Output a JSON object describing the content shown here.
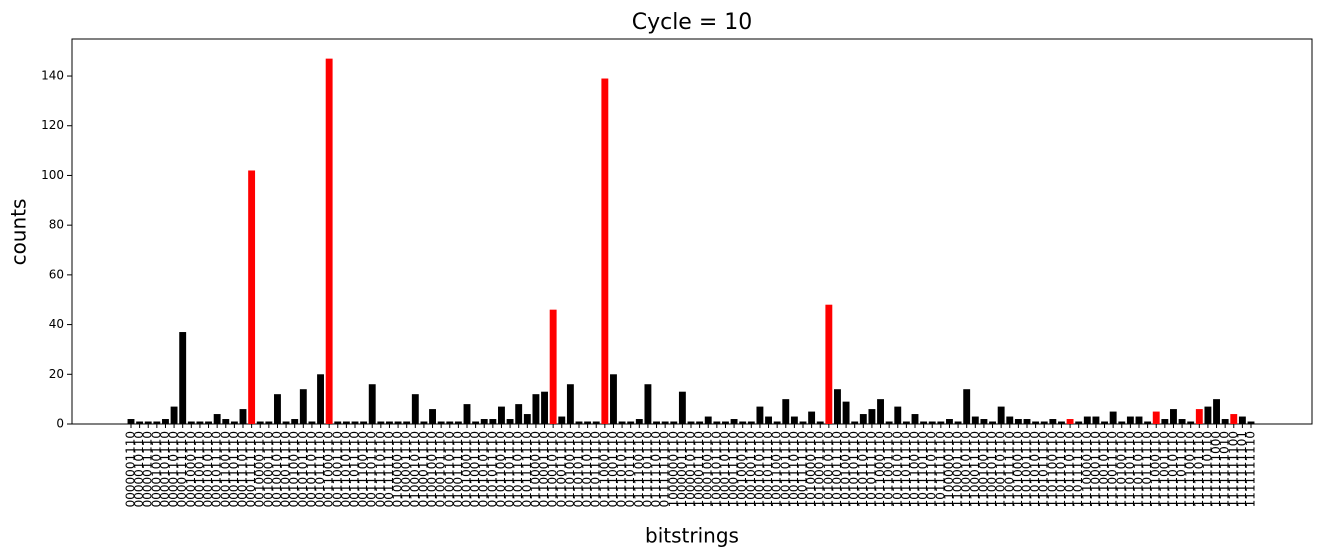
{
  "chart_data": {
    "type": "bar",
    "title": "Cycle  = 10",
    "x_label": "bitstrings",
    "y_label": "counts",
    "categories": [
      "0000001110",
      "0000010110",
      "0000011110",
      "0000100110",
      "0000101110",
      "0000110110",
      "0000111110",
      "0001000110",
      "0001001110",
      "0001010110",
      "0001011110",
      "0001100110",
      "0001101110",
      "0001110110",
      "0001111110",
      "0010000110",
      "0010001110",
      "0010010110",
      "0010011110",
      "0010100110",
      "0010101110",
      "0010110110",
      "0010111110",
      "0011000110",
      "0011001110",
      "0011010110",
      "0011011110",
      "0011100110",
      "0011101110",
      "0011110110",
      "0011111110",
      "0100000110",
      "0100001110",
      "0100010110",
      "0100011110",
      "0100100110",
      "0100101110",
      "0100110110",
      "0100111110",
      "0101000110",
      "0101001110",
      "0101010110",
      "0101011110",
      "0101100110",
      "0101101110",
      "0101110110",
      "0101111110",
      "0110000110",
      "0110001110",
      "0110010110",
      "0110011110",
      "0110100110",
      "0110101110",
      "0110110110",
      "0110111110",
      "0111000110",
      "0111001110",
      "0111010110",
      "0111011110",
      "0111100110",
      "0111101110",
      "0111110110",
      "0111111110",
      "1000000110",
      "1000001110",
      "1000010110",
      "1000011110",
      "1000100110",
      "1000101110",
      "1000110110",
      "1000111110",
      "1001000110",
      "1001001110",
      "1001010110",
      "1001011110",
      "1001100110",
      "1001101110",
      "1001110110",
      "1001111110",
      "1010000110",
      "1010001110",
      "1010010110",
      "1010011110",
      "1010100110",
      "1010101110",
      "1010110110",
      "1010111110",
      "1011000110",
      "1011001110",
      "1011010110",
      "1011011110",
      "1011100110",
      "1011101110",
      "1011110110",
      "1011111110",
      "1100000110",
      "1100001110",
      "1100010110",
      "1100011110",
      "1100100110",
      "1100101110",
      "1100110110",
      "1100111110",
      "1101000110",
      "1101001110",
      "1101010110",
      "1101011110",
      "1101100110",
      "1101101110",
      "1101110110",
      "1101111110",
      "1110000110",
      "1110001110",
      "1110010110",
      "1110011110",
      "1110100110",
      "1110101110",
      "1110110110",
      "1110111110",
      "1111000110",
      "1111001110",
      "1111010110",
      "1111011110",
      "1111100110",
      "1111101110",
      "1111110110",
      "1111111000",
      "1111111010",
      "1111111100",
      "1111111101",
      "1111111110"
    ],
    "values": [
      2,
      1,
      1,
      1,
      2,
      7,
      37,
      1,
      1,
      1,
      4,
      2,
      1,
      6,
      102,
      1,
      1,
      12,
      1,
      2,
      14,
      1,
      20,
      147,
      1,
      1,
      1,
      1,
      16,
      1,
      1,
      1,
      1,
      12,
      1,
      6,
      1,
      1,
      1,
      8,
      1,
      2,
      2,
      7,
      2,
      8,
      4,
      12,
      13,
      46,
      3,
      16,
      1,
      1,
      1,
      139,
      20,
      1,
      1,
      2,
      16,
      1,
      1,
      1,
      13,
      1,
      1,
      3,
      1,
      1,
      2,
      1,
      1,
      7,
      3,
      1,
      10,
      3,
      1,
      5,
      1,
      48,
      14,
      9,
      1,
      4,
      6,
      10,
      1,
      7,
      1,
      4,
      1,
      1,
      1,
      2,
      1,
      14,
      3,
      2,
      1,
      7,
      3,
      2,
      2,
      1,
      1,
      2,
      1,
      2,
      1,
      3,
      3,
      1,
      5,
      1,
      3,
      3,
      1,
      5,
      2,
      6,
      2,
      1,
      6,
      7,
      10,
      2,
      4,
      3,
      1
    ],
    "color": "#000000",
    "highlight_color": "#ff0000",
    "highlight_indices": [
      14,
      23,
      49,
      55,
      81,
      109,
      119,
      124,
      128
    ],
    "ylim": [
      0,
      154.9
    ],
    "yticks": [
      0,
      20,
      40,
      60,
      80,
      100,
      120,
      140
    ]
  }
}
